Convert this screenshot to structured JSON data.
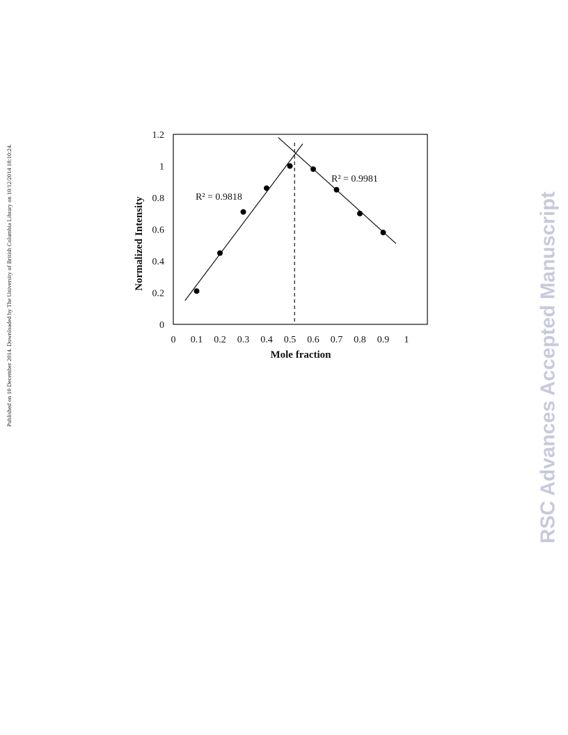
{
  "side_note": "Published on 10 December 2014. Downloaded by The University of British Columbia Library on 10/12/2014 18:10:24.",
  "watermark": "RSC Advances Accepted Manuscript",
  "chart_data": {
    "type": "scatter",
    "xlabel": "Mole fraction",
    "ylabel": "Normalized Intensity",
    "xlim": [
      0,
      1
    ],
    "ylim": [
      0,
      1.2
    ],
    "x_ticks": [
      "0",
      "0.1",
      "0.2",
      "0.3",
      "0.4",
      "0.5",
      "0.6",
      "0.7",
      "0.8",
      "0.9",
      "1"
    ],
    "y_ticks": [
      "0",
      "0.2",
      "0.4",
      "0.6",
      "0.8",
      "1",
      "1.2"
    ],
    "grid": false,
    "points": [
      {
        "x": 0.1,
        "y": 0.21
      },
      {
        "x": 0.2,
        "y": 0.45
      },
      {
        "x": 0.3,
        "y": 0.71
      },
      {
        "x": 0.4,
        "y": 0.86
      },
      {
        "x": 0.5,
        "y": 1.0
      },
      {
        "x": 0.6,
        "y": 0.98
      },
      {
        "x": 0.7,
        "y": 0.85
      },
      {
        "x": 0.8,
        "y": 0.7
      },
      {
        "x": 0.9,
        "y": 0.58
      }
    ],
    "fits": [
      {
        "x0": 0.05,
        "y0": 0.15,
        "x1": 0.555,
        "y1": 1.14
      },
      {
        "x0": 0.45,
        "y0": 1.18,
        "x1": 0.955,
        "y1": 0.51
      }
    ],
    "annotations": [
      "R² = 0.9818",
      "R² = 0.9981"
    ],
    "vline_x": 0.52
  }
}
